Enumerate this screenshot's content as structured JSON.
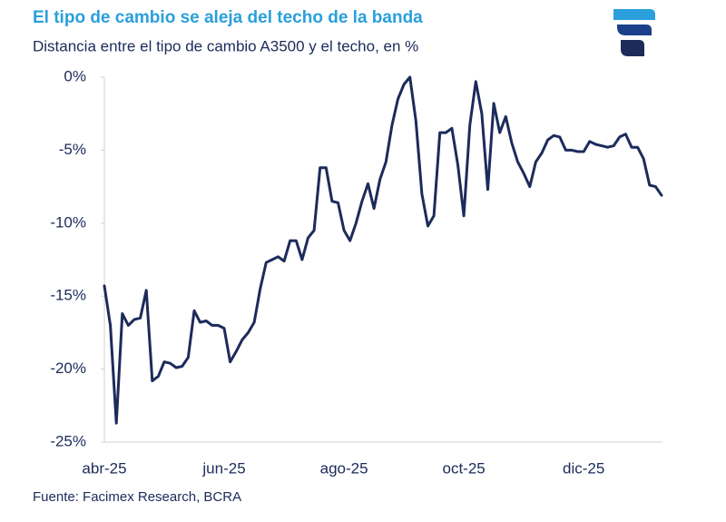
{
  "chart_data": {
    "type": "line",
    "title": "El tipo de cambio se aleja del techo de la banda",
    "subtitle": "Distancia entre el tipo de cambio A3500 y el techo, en %",
    "source": "Fuente: Facimex Research, BCRA",
    "categories": [
      "abr-25",
      null,
      null,
      null,
      null,
      null,
      null,
      null,
      null,
      null,
      null,
      null,
      null,
      null,
      null,
      null,
      null,
      null,
      null,
      null,
      "jun-25",
      null,
      null,
      null,
      null,
      null,
      null,
      null,
      null,
      null,
      null,
      null,
      null,
      null,
      null,
      null,
      null,
      null,
      null,
      null,
      "ago-25",
      null,
      null,
      null,
      null,
      null,
      null,
      null,
      null,
      null,
      null,
      null,
      null,
      null,
      null,
      null,
      null,
      null,
      null,
      null,
      "oct-25",
      null,
      null,
      null,
      null,
      null,
      null,
      null,
      null,
      null,
      null,
      null,
      null,
      null,
      null,
      null,
      null,
      null,
      null,
      null,
      "dic-25",
      null,
      null,
      null,
      null,
      null,
      null,
      null,
      null,
      null,
      null,
      null,
      null,
      null
    ],
    "series": [
      {
        "name": "A3500 vs techo",
        "color": "#1c2b5a",
        "values": [
          -14.3,
          -17,
          -23.7,
          -16.2,
          -17,
          -16.6,
          -16.5,
          -14.6,
          -20.8,
          -20.5,
          -19.5,
          -19.6,
          -19.9,
          -19.8,
          -19.2,
          -16,
          -16.8,
          -16.7,
          -17,
          -17,
          -17.2,
          -19.5,
          -18.8,
          -18,
          -17.5,
          -16.8,
          -14.5,
          -12.7,
          -12.5,
          -12.3,
          -12.6,
          -11.2,
          -11.2,
          -12.5,
          -11,
          -10.5,
          -6.2,
          -6.2,
          -8.5,
          -8.6,
          -10.5,
          -11.2,
          -10,
          -8.5,
          -7.3,
          -9,
          -7,
          -5.8,
          -3.3,
          -1.5,
          -0.5,
          0,
          -3,
          -8,
          -10.2,
          -9.5,
          -3.8,
          -3.8,
          -3.5,
          -6,
          -9.5,
          -3.3,
          -0.3,
          -2.5,
          -7.7,
          -1.8,
          -3.8,
          -2.7,
          -4.5,
          -5.8,
          -6.6,
          -7.5,
          -5.8,
          -5.2,
          -4.3,
          -4,
          -4.1,
          -5,
          -5,
          -5.1,
          -5.1,
          -4.4,
          -4.6,
          -4.7,
          -4.8,
          -4.7,
          -4.1,
          -3.9,
          -4.8,
          -4.8,
          -5.6,
          -7.4,
          -7.5,
          -8.1
        ]
      }
    ],
    "ylim": [
      -25,
      0
    ],
    "yticks": [
      {
        "value": 0,
        "label": "0%"
      },
      {
        "value": -5,
        "label": "-5%"
      },
      {
        "value": -10,
        "label": "-10%"
      },
      {
        "value": -15,
        "label": "-15%"
      },
      {
        "value": -20,
        "label": "-20%"
      },
      {
        "value": -25,
        "label": "-25%"
      }
    ],
    "grid": false
  }
}
